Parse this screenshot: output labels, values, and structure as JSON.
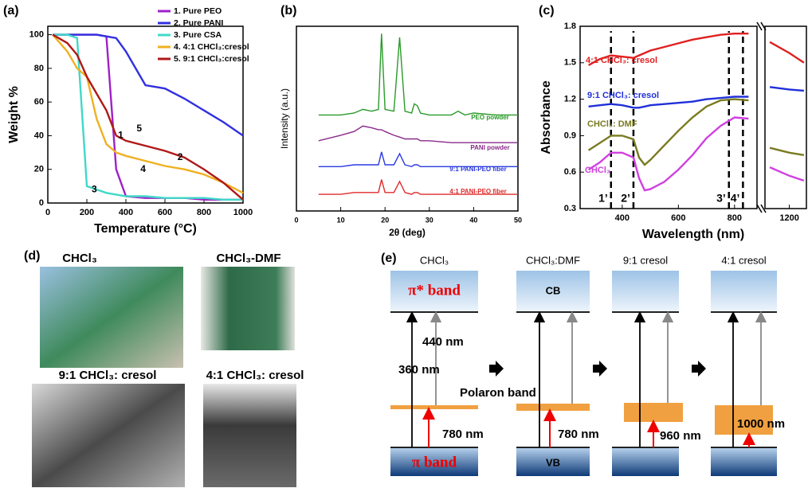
{
  "panel_labels": [
    "(a)",
    "(b)",
    "(c)",
    "(d)",
    "(e)"
  ],
  "chart_data": [
    {
      "type": "line",
      "xlabel": "Temperature (°C)",
      "ylabel": "Weight %",
      "xlim": [
        0,
        1000
      ],
      "xticks": [
        0,
        200,
        400,
        600,
        800,
        1000
      ],
      "ylim": [
        0,
        105
      ],
      "yticks": [
        0,
        20,
        40,
        60,
        80,
        100
      ],
      "legend": "upper right",
      "x": [
        25,
        100,
        150,
        200,
        250,
        300,
        350,
        400,
        500,
        600,
        700,
        800,
        900,
        1000
      ],
      "series": [
        {
          "name": "1. Pure PEO",
          "color": "#a020c8",
          "values": [
            100,
            100,
            100,
            100,
            100,
            99,
            20,
            4,
            3,
            3,
            3,
            2,
            2,
            2
          ]
        },
        {
          "name": "2. Pure PANI",
          "color": "#3030e0",
          "values": [
            100,
            100,
            100,
            100,
            100,
            99,
            98,
            90,
            70,
            68,
            62,
            55,
            48,
            40
          ]
        },
        {
          "name": "3. Pure CSA",
          "color": "#40d8c8",
          "values": [
            100,
            100,
            98,
            10,
            8,
            6,
            5,
            4,
            4,
            3,
            3,
            3,
            2,
            2
          ]
        },
        {
          "name": "4. 4:1 CHCl₃:cresol",
          "color": "#f0b020",
          "values": [
            100,
            90,
            80,
            75,
            50,
            35,
            30,
            28,
            25,
            22,
            20,
            17,
            12,
            6
          ]
        },
        {
          "name": "5. 9:1 CHCl₃:cresol",
          "color": "#b01818",
          "values": [
            100,
            95,
            88,
            75,
            65,
            55,
            40,
            37,
            34,
            31,
            27,
            20,
            12,
            2
          ]
        }
      ],
      "annotations": [
        "1",
        "2",
        "3",
        "4",
        "5"
      ]
    },
    {
      "type": "line",
      "xlabel": "2θ (deg)",
      "ylabel": "Intensity (a.u.)",
      "xlim": [
        0,
        50
      ],
      "xticks": [
        0,
        10,
        20,
        30,
        40,
        50
      ],
      "ylim": [
        0,
        10
      ],
      "legend": null,
      "x": [
        5,
        10,
        13,
        15,
        17,
        18.5,
        19.2,
        20,
        22,
        23.3,
        24.5,
        26,
        26.6,
        27.3,
        28,
        30,
        35,
        36.5,
        38,
        40,
        45,
        50
      ],
      "series": [
        {
          "name": "PEO powder",
          "color": "#2a9a2a",
          "values": [
            5.2,
            5.2,
            5.3,
            5.5,
            5.4,
            5.5,
            9.6,
            5.5,
            5.4,
            9.4,
            5.4,
            5.3,
            5.8,
            5.7,
            5.3,
            5.2,
            5.2,
            5.4,
            5.2,
            5.3,
            5.2,
            5.2
          ]
        },
        {
          "name": "PANI powder",
          "color": "#8a2a8a",
          "values": [
            3.8,
            4.1,
            4.3,
            4.6,
            4.5,
            4.4,
            4.4,
            4.3,
            4.1,
            4.0,
            3.9,
            3.9,
            3.9,
            3.9,
            3.8,
            3.8,
            3.7,
            3.7,
            3.7,
            3.7,
            3.7,
            3.7
          ]
        },
        {
          "name": "9:1 PANI-PEO fiber",
          "color": "#2a3ae0",
          "values": [
            2.4,
            2.4,
            2.5,
            2.5,
            2.5,
            2.5,
            3.2,
            2.5,
            2.5,
            3.1,
            2.5,
            2.4,
            2.5,
            2.5,
            2.4,
            2.4,
            2.4,
            2.4,
            2.4,
            2.4,
            2.4,
            2.4
          ]
        },
        {
          "name": "4:1 PANI-PEO fiber",
          "color": "#e02a2a",
          "values": [
            0.9,
            0.9,
            1.0,
            1.0,
            1.0,
            1.0,
            1.7,
            1.0,
            1.0,
            1.6,
            1.0,
            0.9,
            1.0,
            1.0,
            0.9,
            0.9,
            0.9,
            0.9,
            0.9,
            0.9,
            0.9,
            0.9
          ]
        }
      ]
    },
    {
      "type": "line",
      "xlabel": "Wavelength (nm)",
      "ylabel": "Absorbance",
      "xlim": [
        250,
        880
      ],
      "xticks": [
        400,
        600,
        800
      ],
      "x2lim": [
        1150,
        1235
      ],
      "x2ticks": [
        1200
      ],
      "ylim": [
        0.3,
        1.8
      ],
      "yticks": [
        0.3,
        0.6,
        0.9,
        1.2,
        1.5,
        1.8
      ],
      "legend": null,
      "x": [
        280,
        320,
        360,
        400,
        440,
        460,
        480,
        500,
        550,
        600,
        650,
        700,
        750,
        800,
        850,
        1160,
        1200,
        1230
      ],
      "series": [
        {
          "name": "4:1 CHCl₃: cresol",
          "color": "#e02020",
          "values": [
            1.48,
            1.53,
            1.56,
            1.55,
            1.54,
            1.56,
            1.58,
            1.6,
            1.63,
            1.66,
            1.69,
            1.71,
            1.73,
            1.74,
            1.74,
            1.67,
            1.58,
            1.5
          ]
        },
        {
          "name": "9:1 CHCl₃: cresol",
          "color": "#2030d8",
          "values": [
            1.14,
            1.15,
            1.16,
            1.15,
            1.13,
            1.13,
            1.14,
            1.15,
            1.16,
            1.17,
            1.18,
            1.2,
            1.21,
            1.22,
            1.22,
            1.3,
            1.28,
            1.27
          ]
        },
        {
          "name": "CHCl₃: DMF",
          "color": "#7a7a20",
          "values": [
            0.78,
            0.84,
            0.9,
            0.9,
            0.87,
            0.72,
            0.66,
            0.7,
            0.82,
            0.94,
            1.05,
            1.14,
            1.19,
            1.2,
            1.19,
            0.8,
            0.76,
            0.74
          ]
        },
        {
          "name": "CHCl₃",
          "color": "#d040e0",
          "values": [
            0.62,
            0.68,
            0.76,
            0.76,
            0.72,
            0.55,
            0.45,
            0.46,
            0.52,
            0.62,
            0.74,
            0.88,
            0.98,
            1.05,
            1.04,
            0.64,
            0.57,
            0.53
          ]
        }
      ],
      "markers": [
        {
          "value": 360,
          "label": "1’"
        },
        {
          "value": 440,
          "label": "2’"
        },
        {
          "value": 780,
          "label": "3’"
        },
        {
          "value": 830,
          "label": "4’"
        }
      ]
    }
  ],
  "photos": {
    "captions": [
      "CHCl₃",
      "CHCl₃-DMF",
      "9:1 CHCl₃: cresol",
      "4:1 CHCl₃: cresol"
    ]
  },
  "diagram": {
    "columns": [
      {
        "title": "CHCl₃",
        "top": "π* band",
        "bottom": "π band"
      },
      {
        "title": "CHCl₃:DMF",
        "top": "CB",
        "bottom": "VB"
      },
      {
        "title": "9:1 cresol",
        "top": "",
        "bottom": ""
      },
      {
        "title": "4:1 cresol",
        "top": "",
        "bottom": ""
      }
    ],
    "labels": [
      "440 nm",
      "360 nm",
      "Polaron band",
      "780 nm",
      "780 nm",
      "960 nm",
      "1000 nm"
    ]
  }
}
